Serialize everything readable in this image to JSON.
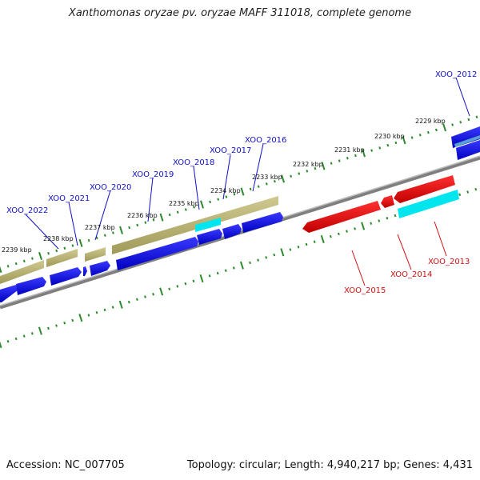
{
  "title": "Xanthomonas oryzae pv. oryzae MAFF 311018, complete genome",
  "accession_text": "Accession: NC_007705",
  "summary_text": "Topology: circular; Length: 4,940,217 bp; Genes: 4,431",
  "colors": {
    "forward_gene": "#1010d8",
    "reverse_gene": "#e00000",
    "cds_band": "#bdb76b",
    "highlight": "#00e5ee",
    "backbone": "#808080",
    "tick": "#2a8a2a"
  },
  "ticks": [
    {
      "kbp": 2229,
      "label": "2229 kbp"
    },
    {
      "kbp": 2230,
      "label": "2230 kbp"
    },
    {
      "kbp": 2231,
      "label": "2231 kbp"
    },
    {
      "kbp": 2232,
      "label": "2232 kbp"
    },
    {
      "kbp": 2233,
      "label": "2233 kbp"
    },
    {
      "kbp": 2234,
      "label": "2234 kbp"
    },
    {
      "kbp": 2235,
      "label": "2235 kbp"
    },
    {
      "kbp": 2236,
      "label": "2236 kbp"
    },
    {
      "kbp": 2237,
      "label": "2237 kbp"
    },
    {
      "kbp": 2238,
      "label": "2238 kbp"
    },
    {
      "kbp": 2239,
      "label": "2239 kbp"
    }
  ],
  "gene_labels": [
    {
      "name": "XOO_2012",
      "strand": "forward"
    },
    {
      "name": "XOO_2013",
      "strand": "reverse"
    },
    {
      "name": "XOO_2014",
      "strand": "reverse"
    },
    {
      "name": "XOO_2015",
      "strand": "reverse"
    },
    {
      "name": "XOO_2016",
      "strand": "forward"
    },
    {
      "name": "XOO_2017",
      "strand": "forward"
    },
    {
      "name": "XOO_2018",
      "strand": "forward"
    },
    {
      "name": "XOO_2019",
      "strand": "forward"
    },
    {
      "name": "XOO_2020",
      "strand": "forward"
    },
    {
      "name": "XOO_2021",
      "strand": "forward"
    },
    {
      "name": "XOO_2022",
      "strand": "forward"
    }
  ]
}
